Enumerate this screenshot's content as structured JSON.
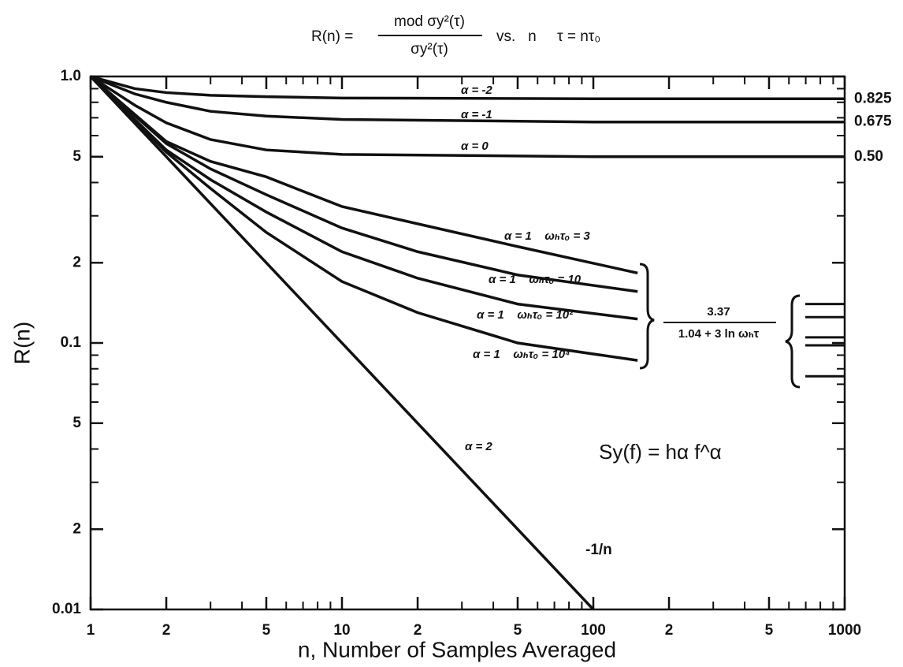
{
  "chart_data": {
    "type": "line",
    "title": {
      "lhs": "R(n) =",
      "numerator": "mod σy²(τ)",
      "denominator": "σy²(τ)",
      "rhs": "vs.   n     τ = nτ₀"
    },
    "x_label": "n, Number of Samples Averaged",
    "y_label": "R(n)",
    "xscale": "log",
    "yscale": "log",
    "xlim": [
      1,
      1000
    ],
    "ylim": [
      0.01,
      1
    ],
    "xticks": [
      1,
      2,
      5,
      10,
      {
        "value": 20,
        "label": "2"
      },
      {
        "value": 50,
        "label": "5"
      },
      100,
      {
        "value": 200,
        "label": "2"
      },
      {
        "value": 500,
        "label": "5"
      },
      1000
    ],
    "yticks": [
      0.01,
      {
        "value": 0.02,
        "label": "2"
      },
      {
        "value": 0.05,
        "label": "5"
      },
      0.1,
      {
        "value": 0.2,
        "label": "2"
      },
      {
        "value": 0.5,
        "label": "5"
      },
      {
        "value": 1,
        "label": "1.0"
      }
    ],
    "series": [
      {
        "label": "α = -2",
        "color": "#111",
        "x": [
          1,
          1.5,
          2,
          3,
          5,
          10,
          100,
          1000
        ],
        "values": [
          1,
          0.9,
          0.87,
          0.85,
          0.84,
          0.83,
          0.825,
          0.825
        ],
        "end_label": "0.825"
      },
      {
        "label": "α = -1",
        "color": "#111",
        "x": [
          1,
          1.5,
          2,
          3,
          5,
          10,
          100,
          1000
        ],
        "values": [
          1,
          0.86,
          0.8,
          0.74,
          0.71,
          0.69,
          0.675,
          0.675
        ],
        "end_label": "0.675"
      },
      {
        "label": "α = 0",
        "color": "#111",
        "x": [
          1,
          1.5,
          2,
          3,
          5,
          10,
          100,
          1000
        ],
        "values": [
          1,
          0.78,
          0.67,
          0.58,
          0.53,
          0.51,
          0.5,
          0.5
        ],
        "end_label": "0.50"
      },
      {
        "label": "α = 1    ωₕτₒ = 3",
        "color": "#111",
        "x": [
          1,
          2,
          3,
          5,
          10,
          20,
          50,
          150
        ],
        "values": [
          1,
          0.57,
          0.48,
          0.42,
          0.325,
          0.28,
          0.23,
          0.183
        ]
      },
      {
        "label": "α = 1    ωₕτₒ = 10",
        "color": "#111",
        "x": [
          1,
          2,
          3,
          5,
          10,
          20,
          50,
          150
        ],
        "values": [
          1,
          0.56,
          0.45,
          0.36,
          0.27,
          0.22,
          0.18,
          0.156
        ]
      },
      {
        "label": "α = 1    ωₕτₒ = 10²",
        "color": "#111",
        "x": [
          1,
          2,
          3,
          5,
          10,
          20,
          50,
          150
        ],
        "values": [
          1,
          0.53,
          0.41,
          0.31,
          0.22,
          0.175,
          0.14,
          0.123
        ]
      },
      {
        "label": "α = 1    ωₕτₒ = 10⁴",
        "color": "#111",
        "x": [
          1,
          2,
          3,
          5,
          10,
          20,
          50,
          150
        ],
        "values": [
          1,
          0.52,
          0.38,
          0.26,
          0.17,
          0.13,
          0.1,
          0.086
        ]
      },
      {
        "label": "α = 2",
        "color": "#111",
        "x": [
          1,
          100
        ],
        "values": [
          1,
          0.01
        ],
        "end_label": "-1/n"
      }
    ],
    "formula": {
      "numerator": "3.37",
      "denominator": "1.04 + 3 ln ωₕτ"
    },
    "right_marks": [
      0.14,
      0.125,
      0.105,
      0.098,
      0.075
    ],
    "spectrum": "Sy(f) = hα f^α"
  }
}
